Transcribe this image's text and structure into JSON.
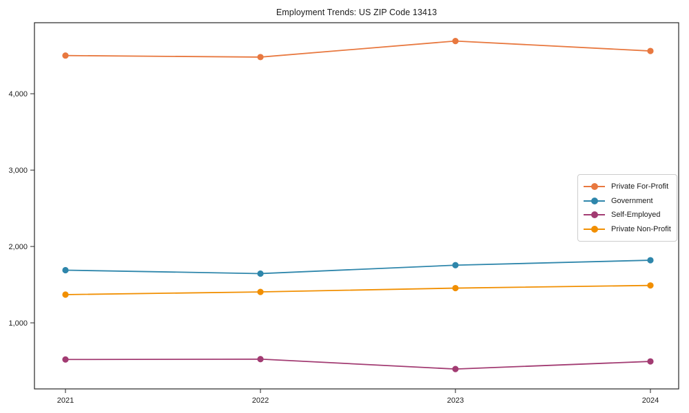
{
  "chart_data": {
    "type": "line",
    "title": "Employment Trends: US ZIP Code 13413",
    "xlabel": "",
    "ylabel": "",
    "categories": [
      "2021",
      "2022",
      "2023",
      "2024"
    ],
    "y_ticks": [
      1000,
      2000,
      3000,
      4000
    ],
    "y_tick_labels": [
      "1,000",
      "2,000",
      "3,000",
      "4,000"
    ],
    "ylim": [
      135,
      4930
    ],
    "grid": false,
    "legend_position": "center right",
    "series": [
      {
        "name": "Private For-Profit",
        "color": "#E8783F",
        "values": [
          4500,
          4480,
          4690,
          4560
        ]
      },
      {
        "name": "Government",
        "color": "#2E86AB",
        "values": [
          1690,
          1645,
          1755,
          1820
        ]
      },
      {
        "name": "Self-Employed",
        "color": "#A23B72",
        "values": [
          520,
          525,
          395,
          495
        ]
      },
      {
        "name": "Private Non-Profit",
        "color": "#F18F01",
        "values": [
          1370,
          1405,
          1455,
          1490
        ]
      }
    ]
  }
}
